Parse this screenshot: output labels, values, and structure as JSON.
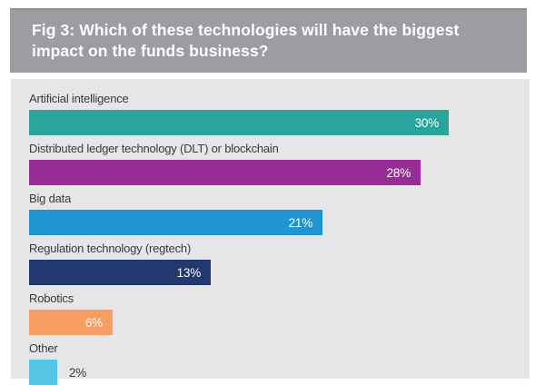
{
  "figure": {
    "heading": "Fig 3: Which of these technologies will have the biggest impact on the funds business?"
  },
  "chart_data": {
    "type": "bar",
    "orientation": "horizontal",
    "title": "Fig 3: Which of these technologies will have the biggest impact on the funds business?",
    "categories": [
      "Artificial intelligence",
      "Distributed ledger technology (DLT) or blockchain",
      "Big data",
      "Regulation technology (regtech)",
      "Robotics",
      "Other"
    ],
    "values": [
      30,
      28,
      21,
      13,
      6,
      2
    ],
    "value_labels": [
      "30%",
      "28%",
      "21%",
      "13%",
      "6%",
      "2%"
    ],
    "bar_colors": [
      "#2BA49B",
      "#982D98",
      "#2095D2",
      "#21396E",
      "#F89E64",
      "#55C6E6"
    ],
    "value_label_placement": [
      "inside",
      "inside",
      "inside",
      "inside",
      "inside",
      "outside"
    ],
    "xlabel": "",
    "ylabel": "",
    "xlim": [
      0,
      36
    ],
    "grid": false,
    "legend": null
  },
  "colors": {
    "title_bg": "#9B9DA2",
    "title_text": "#FFFFFF",
    "panel_bg": "#E6E6E9",
    "label_text": "#3A3A3C",
    "value_text_inside": "#FFFFFF",
    "value_text_outside": "#3A3A3C"
  }
}
